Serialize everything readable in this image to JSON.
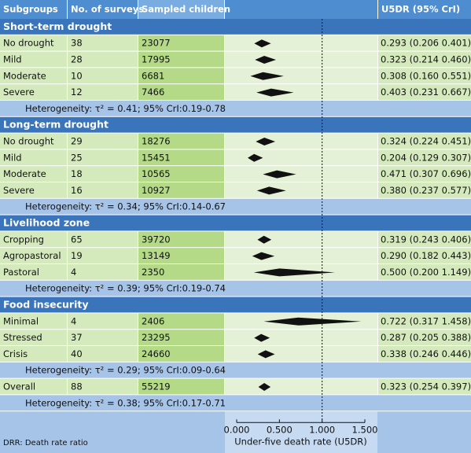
{
  "chart_data": {
    "type": "forest",
    "columns": [
      "Subgroups",
      "No. of surveys",
      "Sampled children",
      "U5DR (95% CrI)"
    ],
    "groups": [
      {
        "title": "Short-term drought",
        "rows": [
          {
            "label": "No drought",
            "surveys": 38,
            "children": 23077,
            "value": 0.293,
            "lower": 0.206,
            "upper": 0.401,
            "value_label": "0.293 (0.206 0.401)"
          },
          {
            "label": "Mild",
            "surveys": 28,
            "children": 17995,
            "value": 0.323,
            "lower": 0.214,
            "upper": 0.46,
            "value_label": "0.323 (0.214 0.460)"
          },
          {
            "label": "Moderate",
            "surveys": 10,
            "children": 6681,
            "value": 0.308,
            "lower": 0.16,
            "upper": 0.551,
            "value_label": "0.308 (0.160 0.551)"
          },
          {
            "label": "Severe",
            "surveys": 12,
            "children": 7466,
            "value": 0.403,
            "lower": 0.231,
            "upper": 0.667,
            "value_label": "0.403 (0.231 0.667)"
          }
        ],
        "heterogeneity": "Heterogeneity:  τ² = 0.41; 95% CrI:0.19-0.78"
      },
      {
        "title": "Long-term drought",
        "rows": [
          {
            "label": "No drought",
            "surveys": 29,
            "children": 18276,
            "value": 0.324,
            "lower": 0.224,
            "upper": 0.451,
            "value_label": "0.324 (0.224 0.451)"
          },
          {
            "label": "Mild",
            "surveys": 25,
            "children": 15451,
            "value": 0.204,
            "lower": 0.129,
            "upper": 0.307,
            "value_label": "0.204 (0.129 0.307)"
          },
          {
            "label": "Moderate",
            "surveys": 18,
            "children": 10565,
            "value": 0.471,
            "lower": 0.307,
            "upper": 0.696,
            "value_label": "0.471 (0.307 0.696)"
          },
          {
            "label": "Severe",
            "surveys": 16,
            "children": 10927,
            "value": 0.38,
            "lower": 0.237,
            "upper": 0.577,
            "value_label": "0.380 (0.237 0.577)"
          }
        ],
        "heterogeneity": "Heterogeneity:  τ² = 0.34; 95% CrI:0.14-0.67"
      },
      {
        "title": "Livelihood zone",
        "rows": [
          {
            "label": "Cropping",
            "surveys": 65,
            "children": 39720,
            "value": 0.319,
            "lower": 0.243,
            "upper": 0.406,
            "value_label": "0.319 (0.243 0.406)"
          },
          {
            "label": "Agropastoral",
            "surveys": 19,
            "children": 13149,
            "value": 0.29,
            "lower": 0.182,
            "upper": 0.443,
            "value_label": "0.290 (0.182 0.443)"
          },
          {
            "label": "Pastoral",
            "surveys": 4,
            "children": 2350,
            "value": 0.5,
            "lower": 0.2,
            "upper": 1.149,
            "value_label": "0.500 (0.200 1.149)"
          }
        ],
        "heterogeneity": "Heterogeneity:  τ² = 0.39; 95% CrI:0.19-0.74"
      },
      {
        "title": "Food insecurity",
        "rows": [
          {
            "label": "Minimal",
            "surveys": 4,
            "children": 2406,
            "value": 0.722,
            "lower": 0.317,
            "upper": 1.458,
            "value_label": "0.722 (0.317 1.458)"
          },
          {
            "label": "Stressed",
            "surveys": 37,
            "children": 23295,
            "value": 0.287,
            "lower": 0.205,
            "upper": 0.388,
            "value_label": "0.287 (0.205 0.388)"
          },
          {
            "label": "Crisis",
            "surveys": 40,
            "children": 24660,
            "value": 0.338,
            "lower": 0.246,
            "upper": 0.446,
            "value_label": "0.338 (0.246 0.446)"
          }
        ],
        "heterogeneity": "Heterogeneity:  τ² = 0.29; 95% CrI:0.09-0.64"
      }
    ],
    "overall": {
      "label": "Overall",
      "surveys": 88,
      "children": 55219,
      "value": 0.323,
      "lower": 0.254,
      "upper": 0.397,
      "value_label": "0.323 (0.254 0.397)",
      "heterogeneity": "Heterogeneity:  τ² = 0.38; 95% CrI:0.17-0.71"
    },
    "x_label": "Under-five death rate (U5DR)",
    "xlim": [
      0,
      1.5
    ],
    "xticks": [
      {
        "value": 0,
        "label": "0.000"
      },
      {
        "value": 0.5,
        "label": "0.500"
      },
      {
        "value": 1,
        "label": "1.000"
      },
      {
        "value": 1.5,
        "label": "1.500"
      }
    ],
    "reference_line": 1,
    "footnote": "DRR: Death rate ratio"
  }
}
